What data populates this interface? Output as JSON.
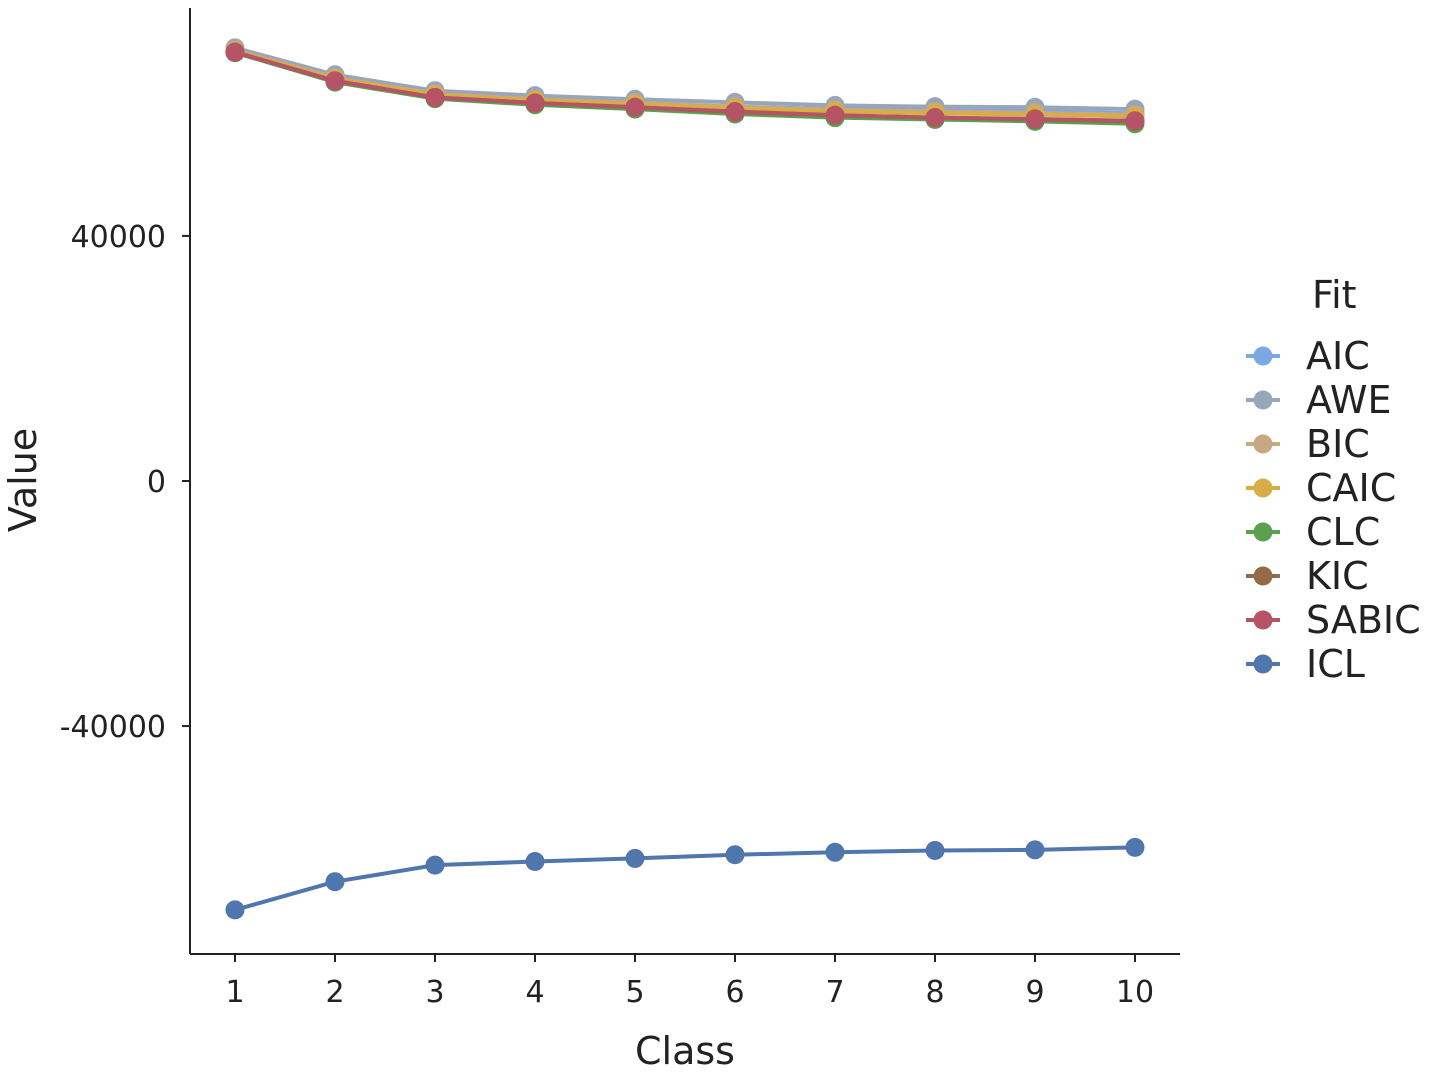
{
  "chart_data": {
    "type": "line",
    "xlabel": "Class",
    "ylabel": "Value",
    "x": [
      1,
      2,
      3,
      4,
      5,
      6,
      7,
      8,
      9,
      10
    ],
    "x_ticks": [
      "1",
      "2",
      "3",
      "4",
      "5",
      "6",
      "7",
      "8",
      "9",
      "10"
    ],
    "y_ticks": [
      {
        "value": 40000,
        "label": "40000"
      },
      {
        "value": 0,
        "label": "0"
      },
      {
        "value": -40000,
        "label": "-40000"
      }
    ],
    "xlim": [
      0.55,
      10.45
    ],
    "ylim": [
      -77200,
      77200
    ],
    "grid": false,
    "legend": {
      "title": "Fit",
      "position": "right"
    },
    "series": [
      {
        "name": "AIC",
        "color": "#7ba7e3",
        "values": [
          70200,
          65700,
          63000,
          62200,
          61600,
          61100,
          60700,
          60500,
          60400,
          60000
        ]
      },
      {
        "name": "AWE",
        "color": "#98a6ba",
        "values": [
          70700,
          66300,
          63700,
          62900,
          62300,
          61800,
          61300,
          61100,
          61000,
          60700
        ]
      },
      {
        "name": "BIC",
        "color": "#c8a882",
        "values": [
          70300,
          65800,
          63200,
          62300,
          61700,
          61100,
          60600,
          60300,
          60100,
          59800
        ]
      },
      {
        "name": "CAIC",
        "color": "#d8ad45",
        "values": [
          70200,
          65600,
          63000,
          62100,
          61500,
          60800,
          60300,
          60000,
          59800,
          59500
        ]
      },
      {
        "name": "CLC",
        "color": "#5aa04f",
        "values": [
          69900,
          65100,
          62400,
          61400,
          60700,
          59900,
          59300,
          59000,
          58700,
          58300
        ]
      },
      {
        "name": "KIC",
        "color": "#946b48",
        "values": [
          70000,
          65300,
          62600,
          61700,
          61000,
          60200,
          59700,
          59300,
          59000,
          58700
        ]
      },
      {
        "name": "SABIC",
        "color": "#b55466",
        "values": [
          70000,
          65300,
          62600,
          61700,
          61000,
          60300,
          59700,
          59300,
          59100,
          58800
        ]
      },
      {
        "name": "ICL",
        "color": "#4f76ad",
        "values": [
          -70000,
          -65400,
          -62700,
          -62100,
          -61600,
          -61000,
          -60600,
          -60300,
          -60200,
          -59800
        ]
      }
    ]
  }
}
